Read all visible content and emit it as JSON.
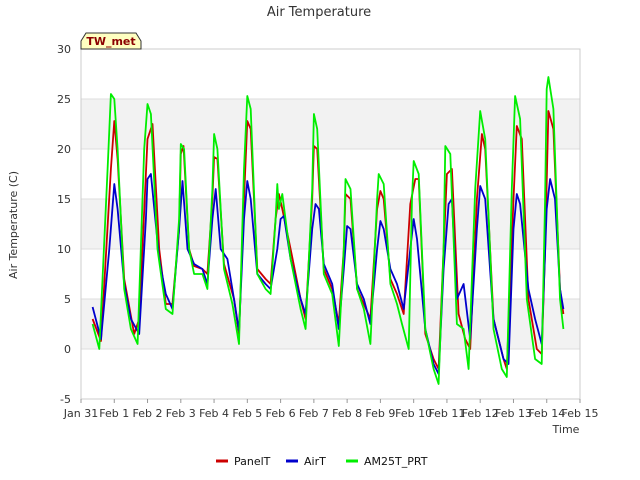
{
  "chart_data": {
    "type": "line",
    "title": "Air Temperature",
    "xlabel": "Time",
    "ylabel": "Air Temperature (C)",
    "badge": "TW_met",
    "xlim": [
      0,
      15
    ],
    "ylim": [
      -5,
      30
    ],
    "x_ticks": [
      {
        "value": 0,
        "label": "Jan 31"
      },
      {
        "value": 1,
        "label": "Feb 1"
      },
      {
        "value": 2,
        "label": "Feb 2"
      },
      {
        "value": 3,
        "label": "Feb 3"
      },
      {
        "value": 4,
        "label": "Feb 4"
      },
      {
        "value": 5,
        "label": "Feb 5"
      },
      {
        "value": 6,
        "label": "Feb 6"
      },
      {
        "value": 7,
        "label": "Feb 7"
      },
      {
        "value": 8,
        "label": "Feb 8"
      },
      {
        "value": 9,
        "label": "Feb 9"
      },
      {
        "value": 10,
        "label": "Feb 10"
      },
      {
        "value": 11,
        "label": "Feb 11"
      },
      {
        "value": 12,
        "label": "Feb 12"
      },
      {
        "value": 13,
        "label": "Feb 13"
      },
      {
        "value": 14,
        "label": "Feb 14"
      },
      {
        "value": 15,
        "label": "Feb 15"
      }
    ],
    "y_ticks": [
      -5,
      0,
      5,
      10,
      15,
      20,
      25,
      30
    ],
    "grid": true,
    "legend_position": "bottom",
    "series": [
      {
        "name": "PanelT",
        "color": "#cc0000",
        "points": [
          [
            0.35,
            3.0
          ],
          [
            0.6,
            0.8
          ],
          [
            0.9,
            18.0
          ],
          [
            1.0,
            22.8
          ],
          [
            1.1,
            19.0
          ],
          [
            1.3,
            7.0
          ],
          [
            1.6,
            1.5
          ],
          [
            1.75,
            3.0
          ],
          [
            2.0,
            21.0
          ],
          [
            2.15,
            22.5
          ],
          [
            2.35,
            10.0
          ],
          [
            2.55,
            4.5
          ],
          [
            2.75,
            4.5
          ],
          [
            2.95,
            12.0
          ],
          [
            3.0,
            19.5
          ],
          [
            3.08,
            20.3
          ],
          [
            3.25,
            10.0
          ],
          [
            3.4,
            8.3
          ],
          [
            3.65,
            8.0
          ],
          [
            3.8,
            7.5
          ],
          [
            3.95,
            15.0
          ],
          [
            4.0,
            19.2
          ],
          [
            4.1,
            19.0
          ],
          [
            4.3,
            8.5
          ],
          [
            4.6,
            5.0
          ],
          [
            4.75,
            1.5
          ],
          [
            4.9,
            15.0
          ],
          [
            5.0,
            22.8
          ],
          [
            5.1,
            22.0
          ],
          [
            5.3,
            8.0
          ],
          [
            5.55,
            7.0
          ],
          [
            5.7,
            6.5
          ],
          [
            5.85,
            13.0
          ],
          [
            5.95,
            15.5
          ],
          [
            6.05,
            14.0
          ],
          [
            6.3,
            10.0
          ],
          [
            6.6,
            5.0
          ],
          [
            6.75,
            3.0
          ],
          [
            6.95,
            15.0
          ],
          [
            7.0,
            20.3
          ],
          [
            7.1,
            20.0
          ],
          [
            7.3,
            8.0
          ],
          [
            7.55,
            6.0
          ],
          [
            7.75,
            2.5
          ],
          [
            7.9,
            10.0
          ],
          [
            7.95,
            15.5
          ],
          [
            8.1,
            15.0
          ],
          [
            8.3,
            6.0
          ],
          [
            8.5,
            4.5
          ],
          [
            8.7,
            3.0
          ],
          [
            8.9,
            14.0
          ],
          [
            9.0,
            15.8
          ],
          [
            9.1,
            15.0
          ],
          [
            9.3,
            7.0
          ],
          [
            9.5,
            5.5
          ],
          [
            9.7,
            3.5
          ],
          [
            9.9,
            14.5
          ],
          [
            10.05,
            17.0
          ],
          [
            10.15,
            17.0
          ],
          [
            10.35,
            1.5
          ],
          [
            10.6,
            -1.0
          ],
          [
            10.75,
            -2.0
          ],
          [
            10.9,
            10.0
          ],
          [
            11.0,
            17.5
          ],
          [
            11.15,
            18.0
          ],
          [
            11.35,
            3.5
          ],
          [
            11.55,
            1.0
          ],
          [
            11.7,
            0.0
          ],
          [
            11.9,
            15.0
          ],
          [
            12.05,
            21.5
          ],
          [
            12.15,
            20.0
          ],
          [
            12.4,
            3.0
          ],
          [
            12.7,
            -1.0
          ],
          [
            12.8,
            -2.0
          ],
          [
            13.0,
            15.0
          ],
          [
            13.1,
            22.3
          ],
          [
            13.25,
            21.0
          ],
          [
            13.45,
            5.0
          ],
          [
            13.7,
            0.0
          ],
          [
            13.85,
            -0.5
          ],
          [
            13.95,
            10.0
          ],
          [
            14.05,
            23.8
          ],
          [
            14.2,
            22.0
          ],
          [
            14.4,
            6.0
          ],
          [
            14.5,
            3.5
          ]
        ]
      },
      {
        "name": "AirT",
        "color": "#0000cc",
        "points": [
          [
            0.35,
            4.2
          ],
          [
            0.6,
            1.0
          ],
          [
            0.85,
            10.0
          ],
          [
            1.0,
            16.5
          ],
          [
            1.1,
            14.0
          ],
          [
            1.3,
            6.5
          ],
          [
            1.5,
            3.0
          ],
          [
            1.75,
            1.5
          ],
          [
            1.95,
            13.0
          ],
          [
            2.0,
            17.0
          ],
          [
            2.1,
            17.5
          ],
          [
            2.35,
            9.0
          ],
          [
            2.55,
            5.5
          ],
          [
            2.75,
            4.0
          ],
          [
            2.95,
            12.0
          ],
          [
            3.05,
            16.8
          ],
          [
            3.2,
            10.0
          ],
          [
            3.4,
            8.5
          ],
          [
            3.65,
            8.0
          ],
          [
            3.8,
            6.5
          ],
          [
            3.95,
            13.0
          ],
          [
            4.05,
            16.0
          ],
          [
            4.2,
            10.0
          ],
          [
            4.4,
            9.0
          ],
          [
            4.6,
            5.0
          ],
          [
            4.75,
            1.8
          ],
          [
            4.9,
            13.0
          ],
          [
            5.0,
            16.8
          ],
          [
            5.1,
            15.0
          ],
          [
            5.3,
            7.5
          ],
          [
            5.55,
            6.5
          ],
          [
            5.7,
            6.0
          ],
          [
            5.9,
            10.0
          ],
          [
            6.0,
            13.0
          ],
          [
            6.1,
            13.3
          ],
          [
            6.3,
            9.0
          ],
          [
            6.6,
            5.0
          ],
          [
            6.75,
            3.5
          ],
          [
            6.95,
            12.0
          ],
          [
            7.05,
            14.5
          ],
          [
            7.15,
            14.0
          ],
          [
            7.3,
            8.5
          ],
          [
            7.55,
            6.5
          ],
          [
            7.75,
            2.0
          ],
          [
            7.9,
            8.0
          ],
          [
            8.0,
            12.3
          ],
          [
            8.1,
            12.0
          ],
          [
            8.3,
            6.5
          ],
          [
            8.5,
            5.0
          ],
          [
            8.7,
            2.5
          ],
          [
            8.9,
            10.0
          ],
          [
            9.0,
            12.8
          ],
          [
            9.1,
            12.0
          ],
          [
            9.3,
            8.0
          ],
          [
            9.5,
            6.5
          ],
          [
            9.7,
            4.0
          ],
          [
            9.9,
            10.0
          ],
          [
            10.0,
            13.0
          ],
          [
            10.1,
            11.0
          ],
          [
            10.35,
            2.0
          ],
          [
            10.6,
            -1.5
          ],
          [
            10.75,
            -2.5
          ],
          [
            10.9,
            8.0
          ],
          [
            11.05,
            14.5
          ],
          [
            11.15,
            15.0
          ],
          [
            11.3,
            5.0
          ],
          [
            11.5,
            6.5
          ],
          [
            11.7,
            1.0
          ],
          [
            11.9,
            12.0
          ],
          [
            12.0,
            16.3
          ],
          [
            12.15,
            15.0
          ],
          [
            12.4,
            3.0
          ],
          [
            12.7,
            -1.0
          ],
          [
            12.85,
            -1.5
          ],
          [
            13.0,
            12.0
          ],
          [
            13.1,
            15.5
          ],
          [
            13.2,
            14.5
          ],
          [
            13.45,
            6.0
          ],
          [
            13.65,
            3.0
          ],
          [
            13.85,
            0.5
          ],
          [
            14.0,
            14.0
          ],
          [
            14.1,
            17.0
          ],
          [
            14.25,
            15.0
          ],
          [
            14.4,
            6.0
          ],
          [
            14.5,
            4.0
          ]
        ]
      },
      {
        "name": "AM25T_PRT",
        "color": "#00ee00",
        "points": [
          [
            0.35,
            2.5
          ],
          [
            0.55,
            0.0
          ],
          [
            0.8,
            18.0
          ],
          [
            0.9,
            25.5
          ],
          [
            1.0,
            25.0
          ],
          [
            1.1,
            20.0
          ],
          [
            1.3,
            6.0
          ],
          [
            1.5,
            2.0
          ],
          [
            1.7,
            0.5
          ],
          [
            1.9,
            20.0
          ],
          [
            2.0,
            24.5
          ],
          [
            2.1,
            23.5
          ],
          [
            2.3,
            10.0
          ],
          [
            2.55,
            4.0
          ],
          [
            2.75,
            3.5
          ],
          [
            2.95,
            13.0
          ],
          [
            3.0,
            20.5
          ],
          [
            3.1,
            20.0
          ],
          [
            3.25,
            10.0
          ],
          [
            3.4,
            7.5
          ],
          [
            3.65,
            7.5
          ],
          [
            3.8,
            6.0
          ],
          [
            3.95,
            16.0
          ],
          [
            4.0,
            21.5
          ],
          [
            4.1,
            20.0
          ],
          [
            4.3,
            8.0
          ],
          [
            4.55,
            4.5
          ],
          [
            4.75,
            0.5
          ],
          [
            4.9,
            18.0
          ],
          [
            5.0,
            25.3
          ],
          [
            5.1,
            24.0
          ],
          [
            5.3,
            7.5
          ],
          [
            5.55,
            6.0
          ],
          [
            5.7,
            5.5
          ],
          [
            5.85,
            13.0
          ],
          [
            5.9,
            16.5
          ],
          [
            5.95,
            14.0
          ],
          [
            6.05,
            15.5
          ],
          [
            6.3,
            9.0
          ],
          [
            6.6,
            4.0
          ],
          [
            6.75,
            2.0
          ],
          [
            6.95,
            16.0
          ],
          [
            7.0,
            23.5
          ],
          [
            7.1,
            22.0
          ],
          [
            7.3,
            7.5
          ],
          [
            7.55,
            5.5
          ],
          [
            7.75,
            0.3
          ],
          [
            7.9,
            10.0
          ],
          [
            7.95,
            17.0
          ],
          [
            8.1,
            16.0
          ],
          [
            8.3,
            6.0
          ],
          [
            8.5,
            4.0
          ],
          [
            8.7,
            0.5
          ],
          [
            8.9,
            15.0
          ],
          [
            8.95,
            17.5
          ],
          [
            9.1,
            16.5
          ],
          [
            9.3,
            6.5
          ],
          [
            9.5,
            4.5
          ],
          [
            9.65,
            2.5
          ],
          [
            9.85,
            0.0
          ],
          [
            9.95,
            15.0
          ],
          [
            10.0,
            18.8
          ],
          [
            10.15,
            17.5
          ],
          [
            10.35,
            2.0
          ],
          [
            10.6,
            -2.0
          ],
          [
            10.75,
            -3.5
          ],
          [
            10.9,
            10.0
          ],
          [
            10.95,
            20.3
          ],
          [
            11.1,
            19.5
          ],
          [
            11.3,
            2.5
          ],
          [
            11.5,
            2.0
          ],
          [
            11.65,
            -2.0
          ],
          [
            11.85,
            16.0
          ],
          [
            12.0,
            23.8
          ],
          [
            12.15,
            21.0
          ],
          [
            12.4,
            2.0
          ],
          [
            12.65,
            -2.0
          ],
          [
            12.8,
            -2.8
          ],
          [
            12.95,
            16.0
          ],
          [
            13.05,
            25.3
          ],
          [
            13.2,
            23.0
          ],
          [
            13.4,
            5.0
          ],
          [
            13.65,
            -1.0
          ],
          [
            13.85,
            -1.5
          ],
          [
            13.95,
            15.0
          ],
          [
            14.0,
            26.0
          ],
          [
            14.05,
            27.2
          ],
          [
            14.2,
            24.0
          ],
          [
            14.4,
            5.0
          ],
          [
            14.5,
            2.0
          ]
        ]
      }
    ]
  }
}
